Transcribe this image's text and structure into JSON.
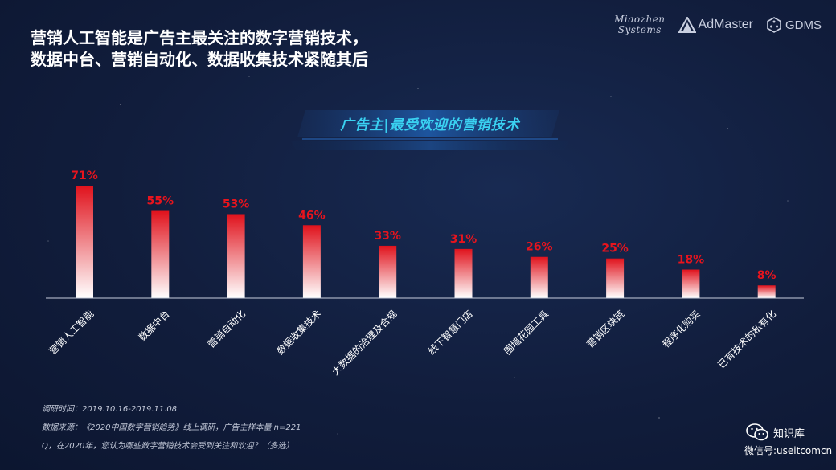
{
  "headline": {
    "line1": "营销人工智能是广告主最关注的数字营销技术，",
    "line2": "数据中台、营销自动化、数据收集技术紧随其后"
  },
  "logos": {
    "miaozhen_line1": "Miaozhen",
    "miaozhen_line2": "Systems",
    "admaster": "AdMaster",
    "gdms": "GDMS"
  },
  "chart_data": {
    "type": "bar",
    "title": "广告主|最受欢迎的营销技术",
    "categories": [
      "营销人工智能",
      "数据中台",
      "营销自动化",
      "数据收集技术",
      "大数据的治理及合规",
      "线下智慧门店",
      "围墙花园工具",
      "营销区块链",
      "程序化购买",
      "已有技术的私有化"
    ],
    "values": [
      71,
      55,
      53,
      46,
      33,
      31,
      26,
      25,
      18,
      8
    ],
    "value_labels": [
      "71%",
      "55%",
      "53%",
      "46%",
      "33%",
      "31%",
      "26%",
      "25%",
      "18%",
      "8%"
    ],
    "unit": "%",
    "grid": false,
    "legend": "none",
    "colors": {
      "bar_top": "#e0121c",
      "bar_bottom": "#ffffff",
      "label": "#e8141d",
      "category_text": "#ffffff",
      "baseline": "#c8cedd"
    }
  },
  "notes": {
    "survey_time": "调研时间：2019.10.16-2019.11.08",
    "source": "数据来源：《2020中国数字营销趋势》线上调研，广告主样本量 n=221",
    "question": "Q，在2020年，您认为哪些数字营销技术会受到关注和欢迎？（多选）"
  },
  "wechat": {
    "icon": "wechat-icon",
    "name": "知识库",
    "id": "微信号:useitcomcn"
  }
}
